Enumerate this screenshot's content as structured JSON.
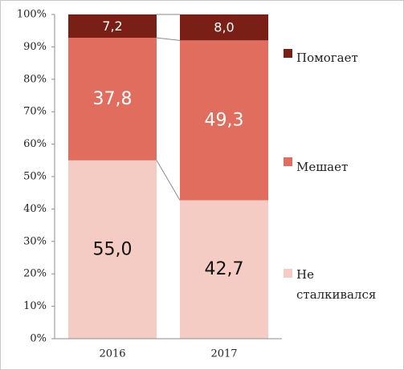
{
  "chart_data": {
    "type": "bar",
    "stacked": true,
    "percent": true,
    "categories": [
      "2016",
      "2017"
    ],
    "series": [
      {
        "name": "Не сталкивался",
        "values": [
          55.0,
          42.7
        ],
        "labels": [
          "55,0",
          "42,7"
        ],
        "color": "#f4ccc4"
      },
      {
        "name": "Мешает",
        "values": [
          37.8,
          49.3
        ],
        "labels": [
          "37,8",
          "49,3"
        ],
        "color": "#e06d5d"
      },
      {
        "name": "Помогает",
        "values": [
          7.2,
          8.0
        ],
        "labels": [
          "7,2",
          "8,0"
        ],
        "color": "#7a1f16"
      }
    ],
    "legend_series_order": [
      2,
      1,
      0
    ],
    "ylim": [
      0,
      100
    ],
    "yticks": [
      "0%",
      "10%",
      "20%",
      "30%",
      "40%",
      "50%",
      "60%",
      "70%",
      "80%",
      "90%",
      "100%"
    ],
    "legend": "right",
    "grid": false,
    "connector_lines": true
  }
}
